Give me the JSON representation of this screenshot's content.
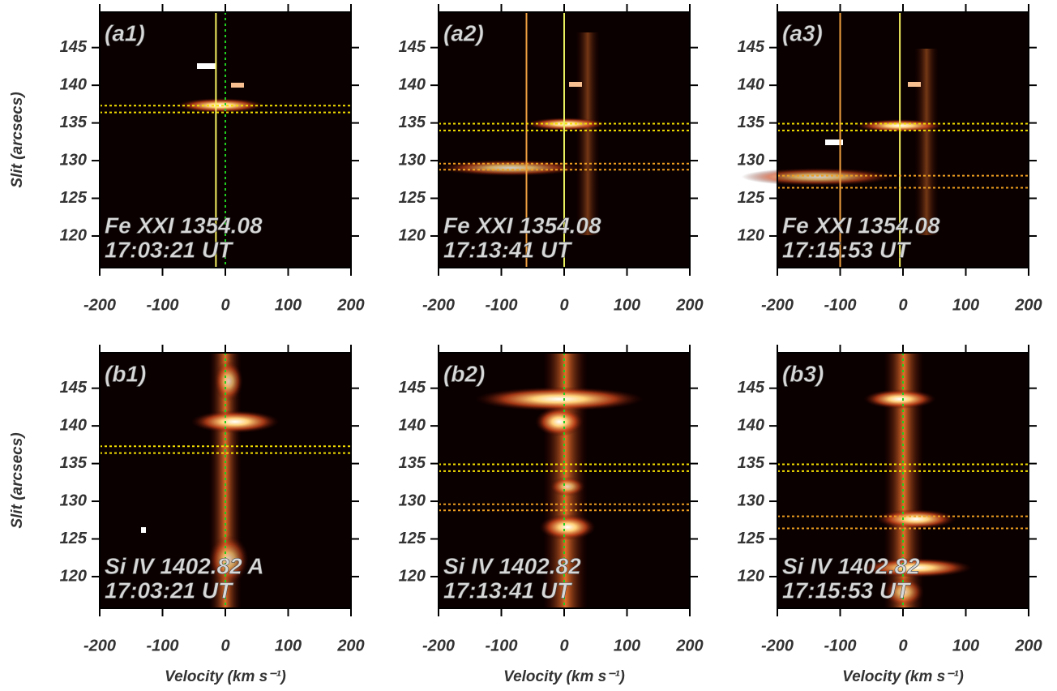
{
  "chart_data": [
    {
      "type": "spectrogram",
      "panel_label": "(a1)",
      "line_label": "Fe XXI 1354.08",
      "time_label": "17:03:21 UT",
      "ylabel": "Slit (arcsecs)",
      "xlim": [
        -200,
        200
      ],
      "ylim": [
        115.8,
        149.7
      ],
      "xticks": [
        -200,
        -100,
        0,
        100,
        200
      ],
      "yticks": [
        120,
        125,
        130,
        135,
        140,
        145
      ],
      "hlines": [
        {
          "value": 137.3,
          "color": "#f5e000"
        },
        {
          "value": 136.4,
          "color": "#f5e000"
        }
      ],
      "vlines": [
        {
          "value": -15,
          "color": "#f5f060",
          "style": "solid"
        },
        {
          "value": 0,
          "color": "#20d020",
          "style": "dotted"
        }
      ]
    },
    {
      "type": "spectrogram",
      "panel_label": "(a2)",
      "line_label": "Fe XXI 1354.08",
      "time_label": "17:13:41 UT",
      "xlim": [
        -200,
        200
      ],
      "ylim": [
        115.8,
        149.7
      ],
      "xticks": [
        -200,
        -100,
        0,
        100,
        200
      ],
      "yticks": [
        120,
        125,
        130,
        135,
        140,
        145
      ],
      "hlines": [
        {
          "value": 134.9,
          "color": "#f5e000"
        },
        {
          "value": 134.0,
          "color": "#f5e000"
        },
        {
          "value": 129.6,
          "color": "#f0a020"
        },
        {
          "value": 128.8,
          "color": "#f0a020"
        }
      ],
      "vlines": [
        {
          "value": -60,
          "color": "#f0a040",
          "style": "solid"
        },
        {
          "value": 0,
          "color": "#e8f060",
          "style": "solid"
        }
      ]
    },
    {
      "type": "spectrogram",
      "panel_label": "(a3)",
      "line_label": "Fe XXI 1354.08",
      "time_label": "17:15:53 UT",
      "xlim": [
        -200,
        200
      ],
      "ylim": [
        115.8,
        149.7
      ],
      "xticks": [
        -200,
        -100,
        0,
        100,
        200
      ],
      "yticks": [
        120,
        125,
        130,
        135,
        140,
        145
      ],
      "hlines": [
        {
          "value": 134.9,
          "color": "#f5e000"
        },
        {
          "value": 134.0,
          "color": "#f5e000"
        },
        {
          "value": 128.0,
          "color": "#f0a020"
        },
        {
          "value": 126.4,
          "color": "#f0a020"
        }
      ],
      "vlines": [
        {
          "value": -100,
          "color": "#f0a040",
          "style": "solid"
        },
        {
          "value": -5,
          "color": "#f5f060",
          "style": "solid"
        }
      ]
    },
    {
      "type": "spectrogram",
      "panel_label": "(b1)",
      "line_label": "Si IV 1402.82 A",
      "time_label": "17:03:21 UT",
      "ylabel": "Slit (arcsecs)",
      "xlabel": "Velocity (km s⁻¹)",
      "xlim": [
        -200,
        200
      ],
      "ylim": [
        115.8,
        149.7
      ],
      "xticks": [
        -200,
        -100,
        0,
        100,
        200
      ],
      "yticks": [
        120,
        125,
        130,
        135,
        140,
        145
      ],
      "hlines": [
        {
          "value": 137.3,
          "color": "#f5e000"
        },
        {
          "value": 136.4,
          "color": "#f5e000"
        }
      ],
      "vlines": [
        {
          "value": 0,
          "color": "#20d020",
          "style": "dotted"
        }
      ]
    },
    {
      "type": "spectrogram",
      "panel_label": "(b2)",
      "line_label": "Si IV 1402.82",
      "time_label": "17:13:41 UT",
      "xlabel": "Velocity (km s⁻¹)",
      "xlim": [
        -200,
        200
      ],
      "ylim": [
        115.8,
        149.7
      ],
      "xticks": [
        -200,
        -100,
        0,
        100,
        200
      ],
      "yticks": [
        120,
        125,
        130,
        135,
        140,
        145
      ],
      "hlines": [
        {
          "value": 134.9,
          "color": "#f5e000"
        },
        {
          "value": 134.0,
          "color": "#f5e000"
        },
        {
          "value": 129.6,
          "color": "#f0a020"
        },
        {
          "value": 128.8,
          "color": "#f0a020"
        }
      ],
      "vlines": [
        {
          "value": 0,
          "color": "#20d020",
          "style": "dotted"
        }
      ]
    },
    {
      "type": "spectrogram",
      "panel_label": "(b3)",
      "line_label": "Si IV 1402.82",
      "time_label": "17:15:53 UT",
      "xlabel": "Velocity (km s⁻¹)",
      "xlim": [
        -200,
        200
      ],
      "ylim": [
        115.8,
        149.7
      ],
      "xticks": [
        -200,
        -100,
        0,
        100,
        200
      ],
      "yticks": [
        120,
        125,
        130,
        135,
        140,
        145
      ],
      "hlines": [
        {
          "value": 134.9,
          "color": "#f5e000"
        },
        {
          "value": 134.0,
          "color": "#f5e000"
        },
        {
          "value": 128.0,
          "color": "#f0a020"
        },
        {
          "value": 126.4,
          "color": "#f0a020"
        }
      ],
      "vlines": [
        {
          "value": 0,
          "color": "#20d020",
          "style": "dotted"
        }
      ]
    }
  ]
}
